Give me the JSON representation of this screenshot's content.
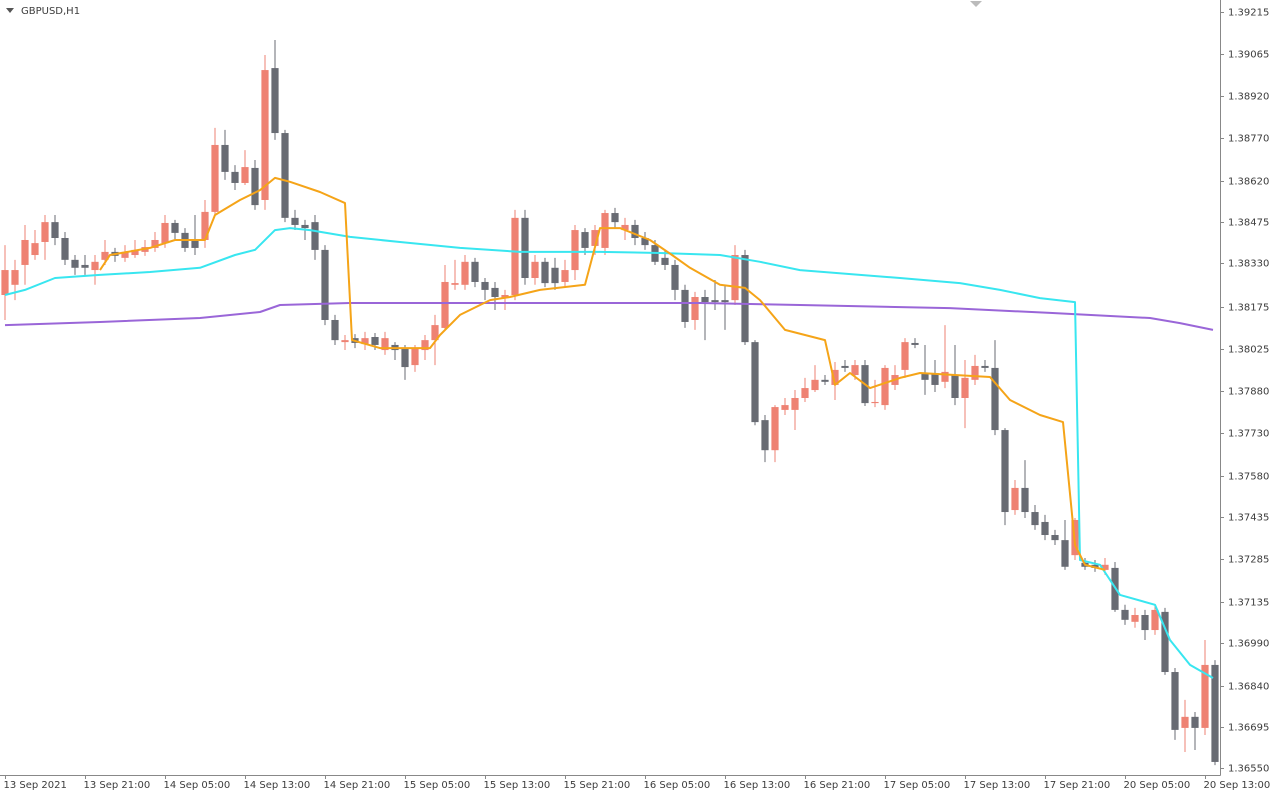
{
  "chart_data": {
    "type": "candlestick",
    "title": "GBPUSD,H1",
    "up_color": "#ee8273",
    "down_color": "#686b73",
    "xlim": [
      -0.5,
      121.5
    ],
    "ylim": [
      1.36525,
      1.39257
    ],
    "xticks": [
      {
        "value": 0,
        "label": "13 Sep 2021"
      },
      {
        "value": 8,
        "label": "13 Sep 21:00"
      },
      {
        "value": 16,
        "label": "14 Sep 05:00"
      },
      {
        "value": 24,
        "label": "14 Sep 13:00"
      },
      {
        "value": 32,
        "label": "14 Sep 21:00"
      },
      {
        "value": 40,
        "label": "15 Sep 05:00"
      },
      {
        "value": 48,
        "label": "15 Sep 13:00"
      },
      {
        "value": 56,
        "label": "15 Sep 21:00"
      },
      {
        "value": 64,
        "label": "16 Sep 05:00"
      },
      {
        "value": 72,
        "label": "16 Sep 13:00"
      },
      {
        "value": 80,
        "label": "16 Sep 21:00"
      },
      {
        "value": 88,
        "label": "17 Sep 05:00"
      },
      {
        "value": 96,
        "label": "17 Sep 13:00"
      },
      {
        "value": 104,
        "label": "17 Sep 21:00"
      },
      {
        "value": 112,
        "label": "20 Sep 05:00"
      },
      {
        "value": 120,
        "label": "20 Sep 13:00"
      }
    ],
    "yticks": [
      1.39215,
      1.39065,
      {
        "value": 1.3892,
        "label": "1.38920"
      },
      {
        "value": 1.3877,
        "label": "1.38770"
      },
      {
        "value": 1.3862,
        "label": "1.38620"
      },
      1.38475,
      {
        "value": 1.3833,
        "label": "1.38330"
      },
      1.38175,
      1.38025,
      {
        "value": 1.3788,
        "label": "1.37880"
      },
      {
        "value": 1.3773,
        "label": "1.37730"
      },
      {
        "value": 1.3758,
        "label": "1.37580"
      },
      1.37435,
      1.37285,
      1.37135,
      {
        "value": 1.3699,
        "label": "1.36990"
      },
      {
        "value": 1.3684,
        "label": "1.36840"
      },
      1.36695,
      {
        "value": 1.3655,
        "label": "1.36550"
      }
    ],
    "open": [
      1.38217,
      1.38253,
      1.38323,
      1.38358,
      1.38404,
      1.38474,
      1.38418,
      1.38341,
      1.38323,
      1.38305,
      1.38341,
      1.38369,
      1.38348,
      1.38358,
      1.38369,
      1.38383,
      1.384,
      1.38471,
      1.38436,
      1.38411,
      1.38411,
      1.3851,
      1.38746,
      1.38651,
      1.38612,
      1.38665,
      1.38552,
      1.39017,
      1.38788,
      1.38489,
      1.38464,
      1.38474,
      1.38376,
      1.38129,
      1.38051,
      1.38065,
      1.38044,
      1.38069,
      1.38023,
      1.38041,
      1.3803,
      1.3797,
      1.38023,
      1.38058,
      1.38101,
      1.38253,
      1.38253,
      1.38334,
      1.38263,
      1.38242,
      1.38206,
      1.38217,
      1.38489,
      1.38277,
      1.38334,
      1.38313,
      1.38263,
      1.38305,
      1.38439,
      1.3839,
      1.38383,
      1.38506,
      1.38446,
      1.38464,
      1.38418,
      1.38393,
      1.38348,
      1.38323,
      1.38235,
      1.38129,
      1.3821,
      1.38199,
      1.38199,
      1.38199,
      1.38358,
      1.38051,
      1.37776,
      1.3767,
      1.37812,
      1.37812,
      1.37854,
      1.37882,
      1.37918,
      1.379,
      1.37967,
      1.37935,
      1.3797,
      1.37836,
      1.37829,
      1.379,
      1.37953,
      1.38048,
      1.37942,
      1.37942,
      1.37911,
      1.37935,
      1.37854,
      1.37918,
      1.37967,
      1.3796,
      1.37741,
      1.37459,
      1.37537,
      1.37452,
      1.37417,
      1.37371,
      1.37353,
      1.373,
      1.37273,
      1.37266,
      1.37248,
      1.37255,
      1.37107,
      1.37065,
      1.37089,
      1.37036,
      1.371,
      1.36888,
      1.36691,
      1.3673,
      1.36691,
      1.36913
    ],
    "high": [
      1.38393,
      1.38341,
      1.38464,
      1.38446,
      1.38499,
      1.38499,
      1.38439,
      1.38358,
      1.38358,
      1.38358,
      1.38411,
      1.38383,
      1.38393,
      1.38411,
      1.38411,
      1.38439,
      1.38499,
      1.38482,
      1.38453,
      1.38499,
      1.38552,
      1.38806,
      1.38799,
      1.38675,
      1.38728,
      1.38693,
      1.39063,
      1.39116,
      1.38799,
      1.38517,
      1.38482,
      1.38499,
      1.38393,
      1.38147,
      1.38076,
      1.38079,
      1.38087,
      1.38083,
      1.38087,
      1.38051,
      1.38041,
      1.38041,
      1.38076,
      1.38147,
      1.38323,
      1.38341,
      1.38358,
      1.38348,
      1.38277,
      1.38263,
      1.38235,
      1.38517,
      1.38517,
      1.38358,
      1.38348,
      1.38348,
      1.38341,
      1.38464,
      1.38453,
      1.38464,
      1.38517,
      1.38524,
      1.38489,
      1.38482,
      1.38439,
      1.38411,
      1.38376,
      1.38341,
      1.38253,
      1.38228,
      1.38235,
      1.3827,
      1.38253,
      1.38393,
      1.38376,
      1.38058,
      1.37794,
      1.37829,
      1.37854,
      1.37882,
      1.37925,
      1.3797,
      1.37935,
      1.37981,
      1.37988,
      1.37988,
      1.37988,
      1.37918,
      1.3797,
      1.3797,
      1.38065,
      1.38065,
      1.38041,
      1.37988,
      1.38111,
      1.38041,
      1.37988,
      1.38006,
      1.37988,
      1.38058,
      1.37748,
      1.37565,
      1.37635,
      1.37477,
      1.37442,
      1.37389,
      1.37424,
      1.37431,
      1.3729,
      1.37283,
      1.3729,
      1.37276,
      1.37125,
      1.37114,
      1.37107,
      1.37125,
      1.37114,
      1.36902,
      1.3679,
      1.36747,
      1.37001,
      1.3693
    ],
    "low": [
      1.38129,
      1.38199,
      1.38253,
      1.38341,
      1.38341,
      1.38393,
      1.38323,
      1.38288,
      1.38288,
      1.38253,
      1.38323,
      1.38334,
      1.38334,
      1.38348,
      1.38355,
      1.38369,
      1.38383,
      1.38411,
      1.38369,
      1.38358,
      1.38383,
      1.38499,
      1.38623,
      1.38587,
      1.38605,
      1.38517,
      1.38517,
      1.38764,
      1.38474,
      1.38446,
      1.38411,
      1.38341,
      1.38111,
      1.38041,
      1.38023,
      1.3803,
      1.38023,
      1.38023,
      1.38006,
      1.37988,
      1.37918,
      1.37946,
      1.37988,
      1.3797,
      1.38094,
      1.38235,
      1.38235,
      1.38245,
      1.38199,
      1.38164,
      1.38164,
      1.38199,
      1.38253,
      1.38253,
      1.38245,
      1.38235,
      1.38242,
      1.3827,
      1.38358,
      1.38358,
      1.38358,
      1.38453,
      1.38411,
      1.38393,
      1.38376,
      1.38323,
      1.38305,
      1.38199,
      1.38101,
      1.38094,
      1.38058,
      1.38164,
      1.38094,
      1.38182,
      1.38041,
      1.37758,
      1.37628,
      1.37628,
      1.37794,
      1.37741,
      1.3784,
      1.37875,
      1.379,
      1.37847,
      1.37946,
      1.37918,
      1.37826,
      1.37822,
      1.37812,
      1.37882,
      1.37925,
      1.3803,
      1.37865,
      1.37875,
      1.37889,
      1.37829,
      1.37748,
      1.379,
      1.37946,
      1.37723,
      1.37406,
      1.37442,
      1.37431,
      1.37389,
      1.37353,
      1.37336,
      1.37248,
      1.37283,
      1.37248,
      1.37241,
      1.37231,
      1.371,
      1.37054,
      1.37044,
      1.37001,
      1.37019,
      1.36878,
      1.36649,
      1.36606,
      1.36613,
      1.36666,
      1.3656
    ],
    "close": [
      1.38305,
      1.38305,
      1.38411,
      1.384,
      1.38474,
      1.38418,
      1.38341,
      1.38313,
      1.38313,
      1.38334,
      1.38369,
      1.38355,
      1.38369,
      1.38376,
      1.38386,
      1.38411,
      1.38471,
      1.38436,
      1.38383,
      1.38383,
      1.3851,
      1.38746,
      1.38651,
      1.38612,
      1.38668,
      1.38534,
      1.3901,
      1.38788,
      1.38489,
      1.38464,
      1.38453,
      1.38376,
      1.38129,
      1.38058,
      1.38058,
      1.38048,
      1.38065,
      1.38041,
      1.38065,
      1.38023,
      1.37963,
      1.3803,
      1.38058,
      1.38111,
      1.38263,
      1.38259,
      1.38334,
      1.38263,
      1.38235,
      1.3821,
      1.38217,
      1.38489,
      1.38277,
      1.38334,
      1.38259,
      1.38259,
      1.38305,
      1.38446,
      1.38383,
      1.38446,
      1.38506,
      1.38474,
      1.38464,
      1.38418,
      1.38393,
      1.38334,
      1.38323,
      1.38235,
      1.38122,
      1.3821,
      1.38192,
      1.38192,
      1.38192,
      1.38358,
      1.38051,
      1.37769,
      1.3767,
      1.37822,
      1.37829,
      1.37854,
      1.37889,
      1.37918,
      1.37911,
      1.37953,
      1.3796,
      1.3797,
      1.37836,
      1.3784,
      1.3796,
      1.37935,
      1.38051,
      1.38041,
      1.37918,
      1.379,
      1.37946,
      1.37854,
      1.37925,
      1.37967,
      1.3796,
      1.37741,
      1.37452,
      1.37537,
      1.37452,
      1.37406,
      1.37371,
      1.37353,
      1.37259,
      1.37424,
      1.37259,
      1.37255,
      1.37266,
      1.37107,
      1.37072,
      1.37089,
      1.37036,
      1.37107,
      1.36888,
      1.36684,
      1.3673,
      1.36691,
      1.36913,
      1.36571
    ],
    "lines": [
      {
        "color": "#9a66d8",
        "x": [
          0,
          9.5,
          19.5,
          25.5,
          27.5,
          34.5,
          49.5,
          69.5,
          79.5,
          94.5,
          104.5,
          114.5,
          117.5,
          120.8
        ],
        "values": [
          1.38111,
          1.38122,
          1.38136,
          1.38157,
          1.38182,
          1.38189,
          1.38189,
          1.38189,
          1.38182,
          1.38171,
          1.38154,
          1.38136,
          1.38118,
          1.38094
        ]
      },
      {
        "color": "#38e6f0",
        "x": [
          0,
          2,
          5,
          9.5,
          14.5,
          19.5,
          23,
          25,
          27,
          28.5,
          30.5,
          34.5,
          39.5,
          45.5,
          51.5,
          59.5,
          65.5,
          71.5,
          75.5,
          79.5,
          89.5,
          95.5,
          99.5,
          103.5,
          107,
          107.5,
          109.5,
          111.5,
          115,
          116.5,
          118.5,
          120.8
        ],
        "values": [
          1.38217,
          1.38235,
          1.38277,
          1.38288,
          1.38298,
          1.38313,
          1.38358,
          1.38376,
          1.38446,
          1.38453,
          1.38446,
          1.38422,
          1.38404,
          1.38383,
          1.38369,
          1.38369,
          1.38365,
          1.38358,
          1.38334,
          1.38305,
          1.38277,
          1.38259,
          1.38235,
          1.38206,
          1.38192,
          1.37283,
          1.37266,
          1.3716,
          1.37125,
          1.37001,
          1.36913,
          1.36867
        ]
      },
      {
        "color": "#f5a418",
        "x": [
          9.5,
          10.5,
          14.5,
          17,
          20,
          21,
          23.5,
          25.5,
          27,
          28.5,
          31.5,
          34,
          34.7,
          37.5,
          42.5,
          43.5,
          45.5,
          48.5,
          50.5,
          53.5,
          58,
          59.5,
          61.5,
          64.5,
          66.7,
          68.5,
          71.5,
          74,
          75.5,
          78,
          82,
          83,
          84.5,
          86.5,
          89.5,
          91.5,
          98.5,
          100.5,
          103.5,
          105.8,
          107,
          108,
          110
        ],
        "values": [
          1.38305,
          1.38358,
          1.38383,
          1.38411,
          1.38411,
          1.38499,
          1.38552,
          1.38587,
          1.3863,
          1.38616,
          1.3858,
          1.38541,
          1.38058,
          1.3803,
          1.3803,
          1.38076,
          1.38147,
          1.38199,
          1.3821,
          1.38235,
          1.38253,
          1.38453,
          1.38453,
          1.38411,
          1.38358,
          1.38313,
          1.38253,
          1.38242,
          1.38199,
          1.38094,
          1.38058,
          1.379,
          1.37942,
          1.37889,
          1.37925,
          1.37942,
          1.37928,
          1.37847,
          1.37794,
          1.37769,
          1.37336,
          1.37266,
          1.37248
        ]
      }
    ]
  }
}
